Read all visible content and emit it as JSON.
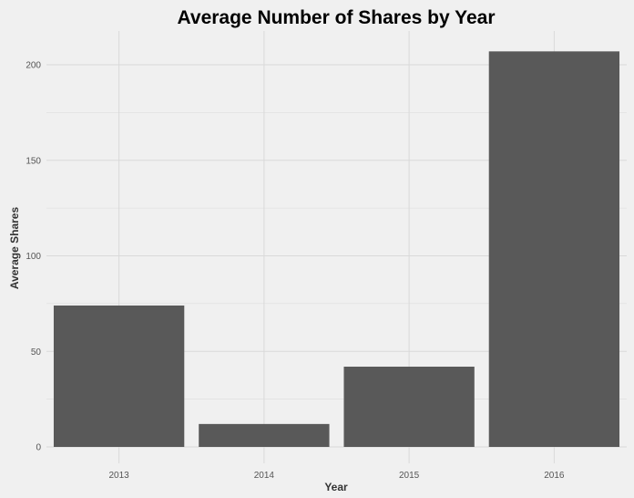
{
  "chart_data": {
    "type": "bar",
    "title": "Average Number of Shares by Year",
    "xlabel": "Year",
    "ylabel": "Average Shares",
    "categories": [
      "2013",
      "2014",
      "2015",
      "2016"
    ],
    "values": [
      74,
      12,
      42,
      207
    ],
    "ylim": [
      0,
      215
    ],
    "yticks": [
      0,
      50,
      100,
      150,
      200
    ],
    "grid": true,
    "legend": "none",
    "colors": {
      "bar": "#595959",
      "background": "#f0f0f0",
      "grid": "#d9d9d9"
    }
  }
}
